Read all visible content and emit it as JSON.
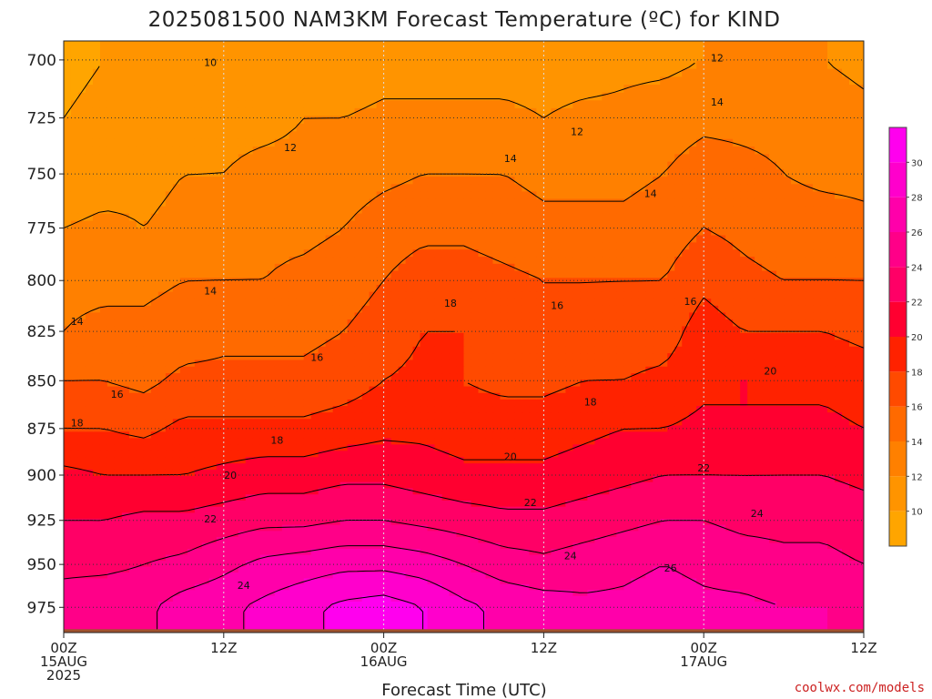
{
  "title": "2025081500 NAM3KM Forecast Temperature (ºC) for KIND",
  "credit": "coolwx.com/models",
  "chart_data": {
    "type": "heatmap",
    "title": "2025081500 NAM3KM Forecast Temperature (ºC) for KIND",
    "xlabel": "Forecast Time (UTC)",
    "ylabel": "",
    "x_hours_range": [
      0,
      60
    ],
    "y_pressure_range": [
      990,
      692
    ],
    "y_scale": "log-pressure (hPa), inverted",
    "grid": true,
    "x_ticks": [
      {
        "hour": 0,
        "lines": [
          "00Z",
          "15AUG",
          "2025"
        ]
      },
      {
        "hour": 12,
        "lines": [
          "12Z"
        ]
      },
      {
        "hour": 24,
        "lines": [
          "00Z",
          "16AUG"
        ]
      },
      {
        "hour": 36,
        "lines": [
          "12Z"
        ]
      },
      {
        "hour": 48,
        "lines": [
          "00Z",
          "17AUG"
        ]
      },
      {
        "hour": 60,
        "lines": [
          "12Z"
        ]
      }
    ],
    "y_ticks": [
      700,
      725,
      750,
      775,
      800,
      825,
      850,
      875,
      900,
      925,
      950,
      975
    ],
    "hours": [
      0,
      3,
      6,
      9,
      12,
      15,
      18,
      21,
      24,
      27,
      30,
      33,
      36,
      39,
      42,
      45,
      48,
      51,
      54,
      57,
      60
    ],
    "levels_hpa": [
      975,
      950,
      925,
      900,
      875,
      850,
      825,
      800,
      775,
      750,
      725,
      700
    ],
    "temperature_c": [
      [
        25.0,
        25.5,
        25.5,
        27.0,
        27.5,
        28.5,
        29.5,
        30.5,
        31.0,
        30.0,
        28.5,
        27.5,
        27.0,
        26.5,
        26.5,
        27.0,
        26.5,
        26.5,
        26.0,
        26.0,
        25.5
      ],
      [
        23.5,
        23.5,
        24.0,
        24.5,
        25.5,
        26.5,
        27.0,
        27.5,
        27.5,
        27.0,
        26.0,
        25.0,
        24.5,
        25.0,
        25.5,
        26.0,
        25.5,
        25.0,
        24.5,
        24.5,
        24.0
      ],
      [
        22.0,
        22.0,
        22.5,
        22.5,
        23.0,
        23.5,
        23.5,
        24.0,
        24.0,
        23.5,
        23.0,
        22.5,
        22.5,
        23.0,
        23.5,
        24.0,
        24.0,
        23.5,
        23.5,
        23.5,
        23.0
      ],
      [
        20.5,
        20.0,
        20.0,
        20.0,
        20.5,
        21.0,
        21.0,
        21.5,
        21.5,
        21.0,
        20.5,
        20.5,
        20.5,
        21.0,
        21.5,
        22.0,
        22.0,
        22.0,
        22.0,
        22.0,
        21.5
      ],
      [
        18.0,
        18.0,
        17.5,
        18.5,
        18.5,
        18.5,
        18.5,
        19.0,
        19.5,
        19.5,
        19.0,
        19.0,
        19.0,
        19.5,
        20.0,
        20.0,
        20.5,
        20.0,
        20.5,
        20.5,
        20.0
      ],
      [
        16.0,
        16.0,
        15.5,
        16.5,
        16.5,
        16.5,
        16.5,
        17.0,
        18.0,
        18.5,
        18.0,
        17.5,
        17.5,
        18.0,
        18.0,
        18.5,
        19.5,
        20.0,
        19.5,
        19.5,
        19.0
      ],
      [
        14.0,
        14.5,
        14.5,
        15.0,
        15.5,
        15.5,
        15.5,
        16.0,
        17.0,
        18.0,
        18.0,
        17.0,
        16.5,
        16.5,
        17.0,
        17.0,
        19.0,
        18.0,
        18.0,
        18.0,
        17.5
      ],
      [
        13.5,
        13.5,
        13.5,
        14.0,
        14.0,
        14.0,
        14.5,
        15.0,
        16.0,
        17.0,
        17.0,
        16.5,
        16.0,
        16.0,
        16.0,
        16.0,
        17.5,
        16.5,
        16.0,
        16.0,
        16.0
      ],
      [
        12.0,
        12.5,
        12.0,
        12.5,
        13.0,
        13.5,
        13.5,
        14.0,
        15.0,
        15.5,
        15.5,
        15.0,
        14.5,
        14.5,
        14.5,
        15.0,
        16.0,
        15.5,
        15.0,
        15.0,
        14.5
      ],
      [
        10.5,
        11.0,
        11.5,
        12.0,
        12.0,
        12.5,
        12.5,
        13.0,
        13.5,
        14.0,
        14.0,
        14.0,
        13.5,
        13.5,
        13.5,
        14.0,
        15.0,
        14.5,
        14.0,
        13.5,
        13.5
      ],
      [
        10.0,
        10.5,
        11.0,
        11.0,
        11.5,
        11.5,
        12.0,
        12.0,
        12.5,
        12.5,
        12.5,
        12.5,
        12.0,
        12.5,
        12.5,
        13.0,
        13.5,
        13.5,
        13.5,
        13.0,
        12.5
      ],
      [
        9.5,
        10.0,
        10.0,
        10.0,
        10.0,
        10.5,
        10.5,
        10.5,
        11.0,
        11.0,
        11.0,
        11.0,
        11.0,
        11.0,
        11.5,
        11.5,
        12.0,
        12.0,
        12.0,
        12.0,
        11.5
      ]
    ],
    "contour_labels": [
      {
        "value": "10",
        "hour": 11,
        "hpa": 701
      },
      {
        "value": "12",
        "hour": 17,
        "hpa": 738
      },
      {
        "value": "12",
        "hour": 38.5,
        "hpa": 731
      },
      {
        "value": "12",
        "hour": 49,
        "hpa": 699
      },
      {
        "value": "14",
        "hour": 33.5,
        "hpa": 743
      },
      {
        "value": "14",
        "hour": 44,
        "hpa": 759
      },
      {
        "value": "14",
        "hour": 49,
        "hpa": 718
      },
      {
        "value": "14",
        "hour": 11,
        "hpa": 805
      },
      {
        "value": "14",
        "hour": 1,
        "hpa": 820
      },
      {
        "value": "16",
        "hour": 4,
        "hpa": 857
      },
      {
        "value": "16",
        "hour": 19,
        "hpa": 838
      },
      {
        "value": "16",
        "hour": 37,
        "hpa": 812
      },
      {
        "value": "16",
        "hour": 47,
        "hpa": 810
      },
      {
        "value": "18",
        "hour": 29,
        "hpa": 811
      },
      {
        "value": "18",
        "hour": 39.5,
        "hpa": 861
      },
      {
        "value": "18",
        "hour": 1,
        "hpa": 872
      },
      {
        "value": "18",
        "hour": 16,
        "hpa": 881
      },
      {
        "value": "20",
        "hour": 12.5,
        "hpa": 900
      },
      {
        "value": "20",
        "hour": 33.5,
        "hpa": 890
      },
      {
        "value": "20",
        "hour": 53,
        "hpa": 845
      },
      {
        "value": "22",
        "hour": 11,
        "hpa": 924
      },
      {
        "value": "22",
        "hour": 35,
        "hpa": 915
      },
      {
        "value": "22",
        "hour": 48,
        "hpa": 896
      },
      {
        "value": "24",
        "hour": 13.5,
        "hpa": 962
      },
      {
        "value": "24",
        "hour": 38,
        "hpa": 945
      },
      {
        "value": "24",
        "hour": 52,
        "hpa": 921
      },
      {
        "value": "26",
        "hour": 45.5,
        "hpa": 952
      }
    ],
    "colorbar": {
      "range": [
        8,
        32
      ],
      "ticks": [
        10,
        12,
        14,
        16,
        18,
        20,
        22,
        24,
        26,
        28,
        30
      ],
      "bins": [
        {
          "from": 8,
          "to": 10,
          "color": "#ffa500"
        },
        {
          "from": 10,
          "to": 12,
          "color": "#ff9400"
        },
        {
          "from": 12,
          "to": 14,
          "color": "#ff8000"
        },
        {
          "from": 14,
          "to": 16,
          "color": "#ff6a00"
        },
        {
          "from": 16,
          "to": 18,
          "color": "#ff4a00"
        },
        {
          "from": 18,
          "to": 20,
          "color": "#ff2200"
        },
        {
          "from": 20,
          "to": 22,
          "color": "#ff0030"
        },
        {
          "from": 22,
          "to": 24,
          "color": "#ff0066"
        },
        {
          "from": 24,
          "to": 26,
          "color": "#ff0088"
        },
        {
          "from": 26,
          "to": 28,
          "color": "#ff00aa"
        },
        {
          "from": 28,
          "to": 30,
          "color": "#ff00cc"
        },
        {
          "from": 30,
          "to": 32,
          "color": "#ff00ee"
        }
      ]
    },
    "colors": {
      "ground": "#a0522d",
      "contour_line": "#000000",
      "grid": "#333333",
      "credit": "#cc2222"
    }
  }
}
